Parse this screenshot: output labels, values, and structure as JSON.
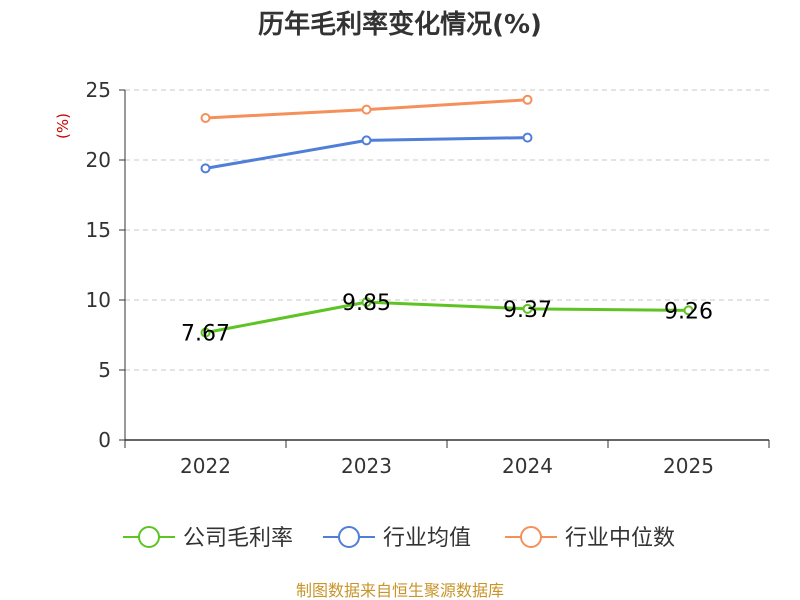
{
  "chart_data": {
    "type": "line",
    "title": "历年毛利率变化情况(%)",
    "ylabel": "(%)",
    "categories": [
      "2022",
      "2023",
      "2024",
      "2025"
    ],
    "ylim": [
      0,
      25
    ],
    "yticks": [
      0,
      5,
      10,
      15,
      20,
      25
    ],
    "grid": true,
    "legend_position": "bottom",
    "series": [
      {
        "name": "公司毛利率",
        "color": "#5ec424",
        "values": [
          7.67,
          9.85,
          9.37,
          9.26
        ],
        "labels": [
          "7.67",
          "9.85",
          "9.37",
          "9.26"
        ]
      },
      {
        "name": "行业均值",
        "color": "#4f7fd8",
        "values": [
          19.4,
          21.4,
          21.6,
          null
        ],
        "labels": []
      },
      {
        "name": "行业中位数",
        "color": "#f5905a",
        "values": [
          23.0,
          23.6,
          24.3,
          null
        ],
        "labels": []
      }
    ]
  },
  "source": "制图数据来自恒生聚源数据库"
}
